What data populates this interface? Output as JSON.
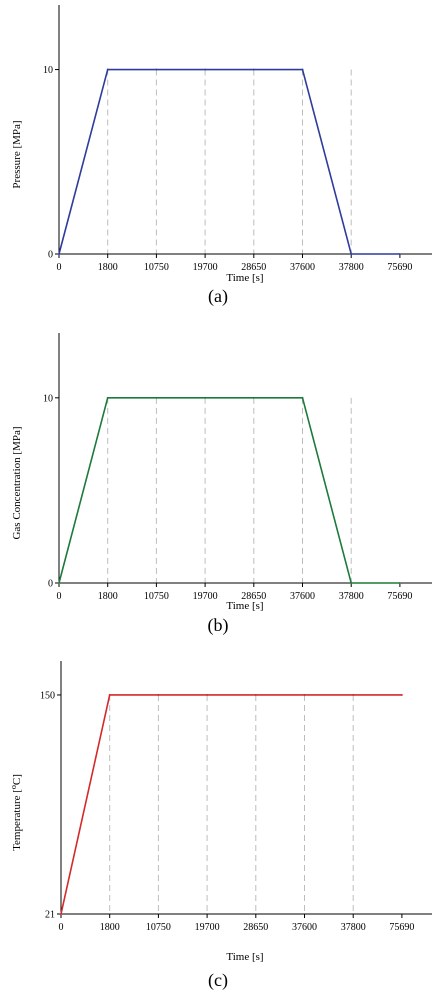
{
  "chart_data": [
    {
      "type": "line",
      "caption": "(a)",
      "xlabel": "Time [s]",
      "ylabel": "Pressure [MPa]",
      "categories": [
        "0",
        "1800",
        "10750",
        "19700",
        "28650",
        "37600",
        "37800",
        "75690"
      ],
      "yticks": [
        0,
        10
      ],
      "ylim": [
        0,
        13.5
      ],
      "series": [
        {
          "color": "#2e3c9c",
          "values": [
            0,
            10,
            10,
            10,
            10,
            10,
            0,
            0
          ]
        }
      ],
      "grid": "vertical dashed guides at each time step"
    },
    {
      "type": "line",
      "caption": "(b)",
      "xlabel": "Time [s]",
      "ylabel": "Gas Concentration [MPa]",
      "categories": [
        "0",
        "1800",
        "10750",
        "19700",
        "28650",
        "37600",
        "37800",
        "75690"
      ],
      "yticks": [
        0,
        10
      ],
      "ylim": [
        0,
        13.5
      ],
      "series": [
        {
          "color": "#1e7a3c",
          "values": [
            0,
            10,
            10,
            10,
            10,
            10,
            0,
            0
          ]
        }
      ],
      "grid": "vertical dashed guides at each time step"
    },
    {
      "type": "line",
      "caption": "(c)",
      "xlabel": "Time [s]",
      "ylabel": "Temperature [",
      "ylabel_sup": "o",
      "ylabel_end": "C]",
      "categories": [
        "0",
        "1800",
        "10750",
        "19700",
        "28650",
        "37600",
        "37800",
        "75690"
      ],
      "yticks": [
        21,
        150
      ],
      "ylim": [
        21,
        170
      ],
      "series": [
        {
          "color": "#d42a2a",
          "values": [
            21,
            150,
            150,
            150,
            150,
            150,
            150,
            150
          ]
        }
      ],
      "grid": "vertical dashed guides at each time step"
    }
  ]
}
